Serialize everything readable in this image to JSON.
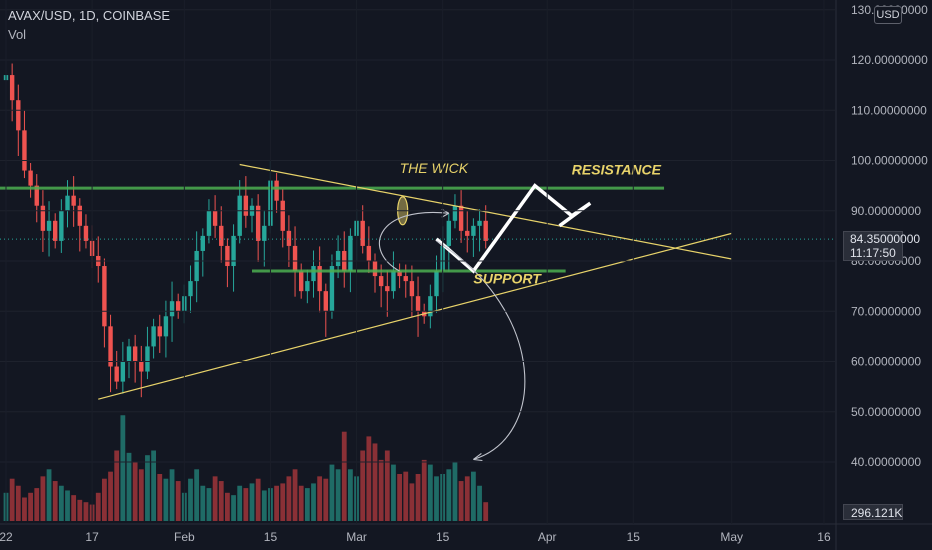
{
  "header": {
    "symbol": "AVAX/USD, 1D, COINBASE",
    "volume_label": "Vol",
    "currency": "USD"
  },
  "price_scale": {
    "last_price": "84.35000000",
    "countdown": "11:17:50",
    "volume_value": "296.121K"
  },
  "colors": {
    "up": "#26a69a",
    "down": "#ef5350",
    "vol_up": "#1f6b66",
    "vol_down": "#8a3036",
    "green_line": "#4caf50",
    "yellow_line": "#e8d36a",
    "annotation_text": "#e8d36a"
  },
  "chart_data": {
    "type": "candlestick",
    "title": "AVAX/USD, 1D, COINBASE",
    "ylim": [
      32,
      130
    ],
    "y_ticks": [
      "40.00000000",
      "50.00000000",
      "60.00000000",
      "70.00000000",
      "80.00000000",
      "90.00000000",
      "100.00000000",
      "110.00000000",
      "120.00000000",
      "130.00000000"
    ],
    "y_tick_values": [
      40,
      50,
      60,
      70,
      80,
      90,
      100,
      110,
      120,
      130
    ],
    "x_ticks": [
      {
        "label": "22",
        "day": 0
      },
      {
        "label": "17",
        "day": 14
      },
      {
        "label": "Feb",
        "day": 29
      },
      {
        "label": "15",
        "day": 43
      },
      {
        "label": "Mar",
        "day": 57
      },
      {
        "label": "15",
        "day": 71
      },
      {
        "label": "Apr",
        "day": 88
      },
      {
        "label": "15",
        "day": 102
      },
      {
        "label": "May",
        "day": 118
      },
      {
        "label": "16",
        "day": 133
      }
    ],
    "candles_close": [
      117,
      112,
      106,
      98,
      95,
      91,
      86,
      88,
      84,
      90,
      93,
      91,
      87,
      84,
      81,
      79,
      67,
      59,
      56,
      60,
      63,
      60,
      58,
      63,
      67,
      65,
      69,
      72,
      70,
      73,
      76,
      82,
      85,
      90,
      87,
      83,
      79,
      85,
      93,
      89,
      91,
      84,
      87,
      96,
      92,
      86,
      83,
      78,
      74,
      76,
      79,
      74,
      70,
      79,
      82,
      78,
      85,
      88,
      83,
      80,
      77,
      75,
      74,
      78,
      77,
      76,
      73,
      70,
      69,
      73,
      78,
      83,
      88,
      91,
      86,
      85,
      87,
      88,
      84
    ],
    "volume": [
      12,
      18,
      15,
      10,
      12,
      14,
      19,
      22,
      17,
      15,
      13,
      11,
      9,
      8,
      7,
      12,
      18,
      21,
      30,
      45,
      29,
      25,
      22,
      28,
      30,
      20,
      18,
      22,
      17,
      12,
      18,
      22,
      15,
      14,
      19,
      17,
      12,
      11,
      15,
      14,
      16,
      18,
      13,
      14,
      15,
      16,
      19,
      22,
      15,
      14,
      16,
      19,
      18,
      24,
      22,
      38,
      22,
      19,
      30,
      36,
      33,
      26,
      30,
      24,
      20,
      21,
      16,
      20,
      26,
      24,
      19,
      20,
      22,
      25,
      17,
      19,
      21,
      15,
      8
    ],
    "trendlines": [
      {
        "name": "resistance_horizontal",
        "type": "horizontal",
        "value": 94.5,
        "from_day": -2,
        "to_day": 107
      },
      {
        "name": "support_horizontal",
        "type": "horizontal",
        "value": 78,
        "from_day": 40,
        "to_day": 91
      },
      {
        "name": "descending_triangle_line",
        "from": [
          38,
          99.2
        ],
        "to": [
          118,
          80.4
        ]
      },
      {
        "name": "ascending_triangle_line",
        "from": [
          15,
          52.5
        ],
        "to": [
          118,
          85.5
        ]
      }
    ],
    "projected_path": [
      [
        70,
        84.4
      ],
      [
        76,
        78
      ],
      [
        86,
        95
      ],
      [
        92,
        89
      ],
      [
        95,
        91.5
      ],
      [
        90,
        87
      ]
    ],
    "annotations": [
      {
        "text": "THE WICK",
        "day": 64,
        "price": 97.5
      },
      {
        "text": "RESISTANCE",
        "day": 92,
        "price": 97.2
      },
      {
        "text": "SUPPORT",
        "day": 76,
        "price": 75.5
      }
    ]
  }
}
